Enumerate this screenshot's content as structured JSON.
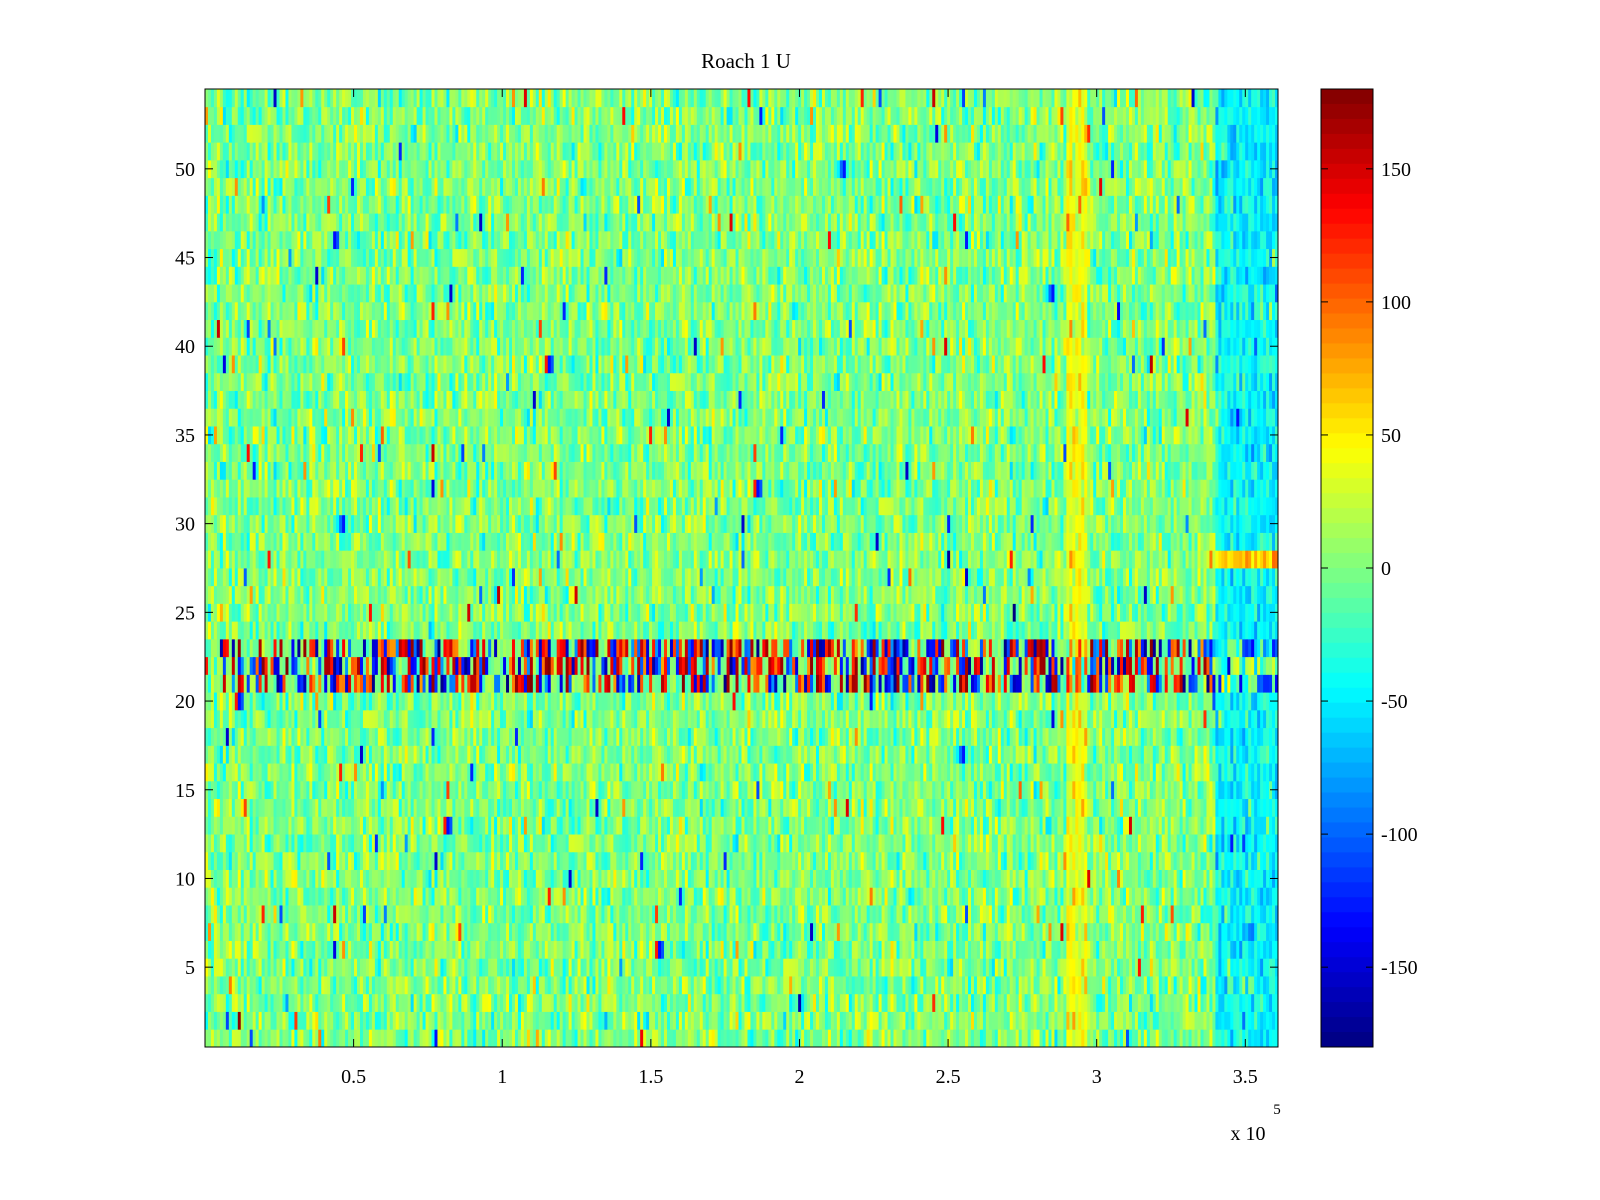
{
  "chart_data": {
    "type": "heatmap",
    "title": "Roach 1 U",
    "xlabel": "",
    "ylabel": "",
    "x_exponent_label": "x 10",
    "x_exponent_power": "5",
    "xlim": [
      0,
      361000
    ],
    "ylim": [
      0.5,
      54.5
    ],
    "x_ticks": [
      {
        "value": 50000,
        "label": "0.5"
      },
      {
        "value": 100000,
        "label": "1"
      },
      {
        "value": 150000,
        "label": "1.5"
      },
      {
        "value": 200000,
        "label": "2"
      },
      {
        "value": 250000,
        "label": "2.5"
      },
      {
        "value": 300000,
        "label": "3"
      },
      {
        "value": 350000,
        "label": "3.5"
      }
    ],
    "y_ticks": [
      {
        "value": 5,
        "label": "5"
      },
      {
        "value": 10,
        "label": "10"
      },
      {
        "value": 15,
        "label": "15"
      },
      {
        "value": 20,
        "label": "20"
      },
      {
        "value": 25,
        "label": "25"
      },
      {
        "value": 30,
        "label": "30"
      },
      {
        "value": 35,
        "label": "35"
      },
      {
        "value": 40,
        "label": "40"
      },
      {
        "value": 45,
        "label": "45"
      },
      {
        "value": 50,
        "label": "50"
      }
    ],
    "colorbar": {
      "colormap": "jet",
      "range": [
        -180,
        180
      ],
      "ticks": [
        {
          "value": 150,
          "label": "150"
        },
        {
          "value": 100,
          "label": "100"
        },
        {
          "value": 50,
          "label": "50"
        },
        {
          "value": 0,
          "label": "0"
        },
        {
          "value": -50,
          "label": "-50"
        },
        {
          "value": -100,
          "label": "-100"
        },
        {
          "value": -150,
          "label": "-150"
        }
      ]
    },
    "rows": 54,
    "background_level": 0,
    "noise_amplitude": 22,
    "features": [
      {
        "kind": "row-band",
        "rows": [
          21,
          22,
          23
        ],
        "x_range": [
          5000,
          361000
        ],
        "description_values": [
          -180,
          180
        ]
      },
      {
        "kind": "column-band",
        "x_range": [
          290000,
          297000
        ],
        "rows": [
          1,
          54
        ],
        "mean": 40
      },
      {
        "kind": "column-band",
        "x_range": [
          340000,
          361000
        ],
        "rows": [
          1,
          54
        ],
        "mean": -45
      },
      {
        "kind": "row-band",
        "rows": [
          28
        ],
        "x_range": [
          340000,
          361000
        ],
        "mean": 70
      }
    ],
    "grid": false,
    "legend": "none"
  }
}
